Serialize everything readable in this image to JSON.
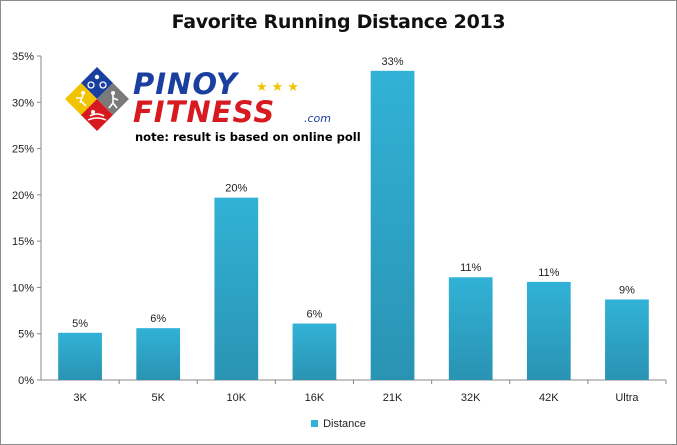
{
  "logo": {
    "line1": "PINOY",
    "line2": "FITNESS",
    "suffix": ".com",
    "stars": "★★★",
    "note": "note: result is based on online poll"
  },
  "colors": {
    "bar": "#31b2d6",
    "bar_dark": "#2a93b3",
    "logo_blue": "#1a3f9e",
    "logo_red": "#d71920"
  },
  "chart_data": {
    "type": "bar",
    "title": "Favorite Running Distance 2013",
    "xlabel": "",
    "ylabel": "",
    "categories": [
      "3K",
      "5K",
      "10K",
      "16K",
      "21K",
      "32K",
      "42K",
      "Ultra"
    ],
    "series": [
      {
        "name": "Distance",
        "values": [
          5.1,
          5.6,
          19.7,
          6.1,
          33.4,
          11.1,
          10.6,
          8.7
        ],
        "labels": [
          "5%",
          "6%",
          "20%",
          "6%",
          "33%",
          "11%",
          "11%",
          "9%"
        ]
      }
    ],
    "ylim": [
      0,
      35
    ],
    "yticks": [
      "0%",
      "5%",
      "10%",
      "15%",
      "20%",
      "25%",
      "30%",
      "35%"
    ],
    "grid": false,
    "legend": "bottom"
  }
}
